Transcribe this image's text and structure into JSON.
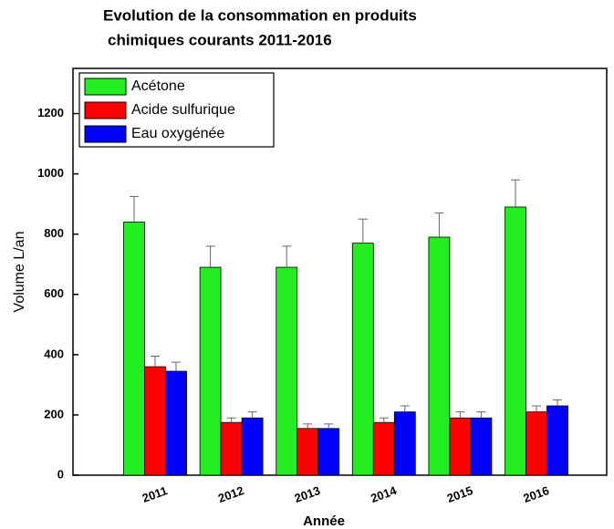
{
  "chart_data": {
    "type": "bar",
    "title": [
      "Evolution de la consommation en produits",
      "chimiques courants 2011-2016"
    ],
    "x_label": "Année",
    "y_label": "Volume L/an",
    "categories": [
      "2011",
      "2012",
      "2013",
      "2014",
      "2015",
      "2016"
    ],
    "series": [
      {
        "name": "Acétone",
        "color": "#22ee22",
        "values": [
          840,
          690,
          690,
          770,
          790,
          890
        ],
        "errors": [
          85,
          70,
          70,
          80,
          80,
          90
        ]
      },
      {
        "name": "Acide sulfurique",
        "color": "#ff0000",
        "values": [
          360,
          175,
          155,
          175,
          190,
          210
        ],
        "errors": [
          35,
          15,
          15,
          15,
          20,
          20
        ]
      },
      {
        "name": "Eau oxygénée",
        "color": "#0000ff",
        "values": [
          345,
          190,
          155,
          210,
          190,
          230
        ],
        "errors": [
          30,
          20,
          15,
          20,
          20,
          20
        ]
      }
    ],
    "ylim": [
      0,
      1350
    ],
    "yticks": [
      0,
      200,
      400,
      600,
      800,
      1000,
      1200
    ],
    "grid": false,
    "legend": "upper left"
  }
}
